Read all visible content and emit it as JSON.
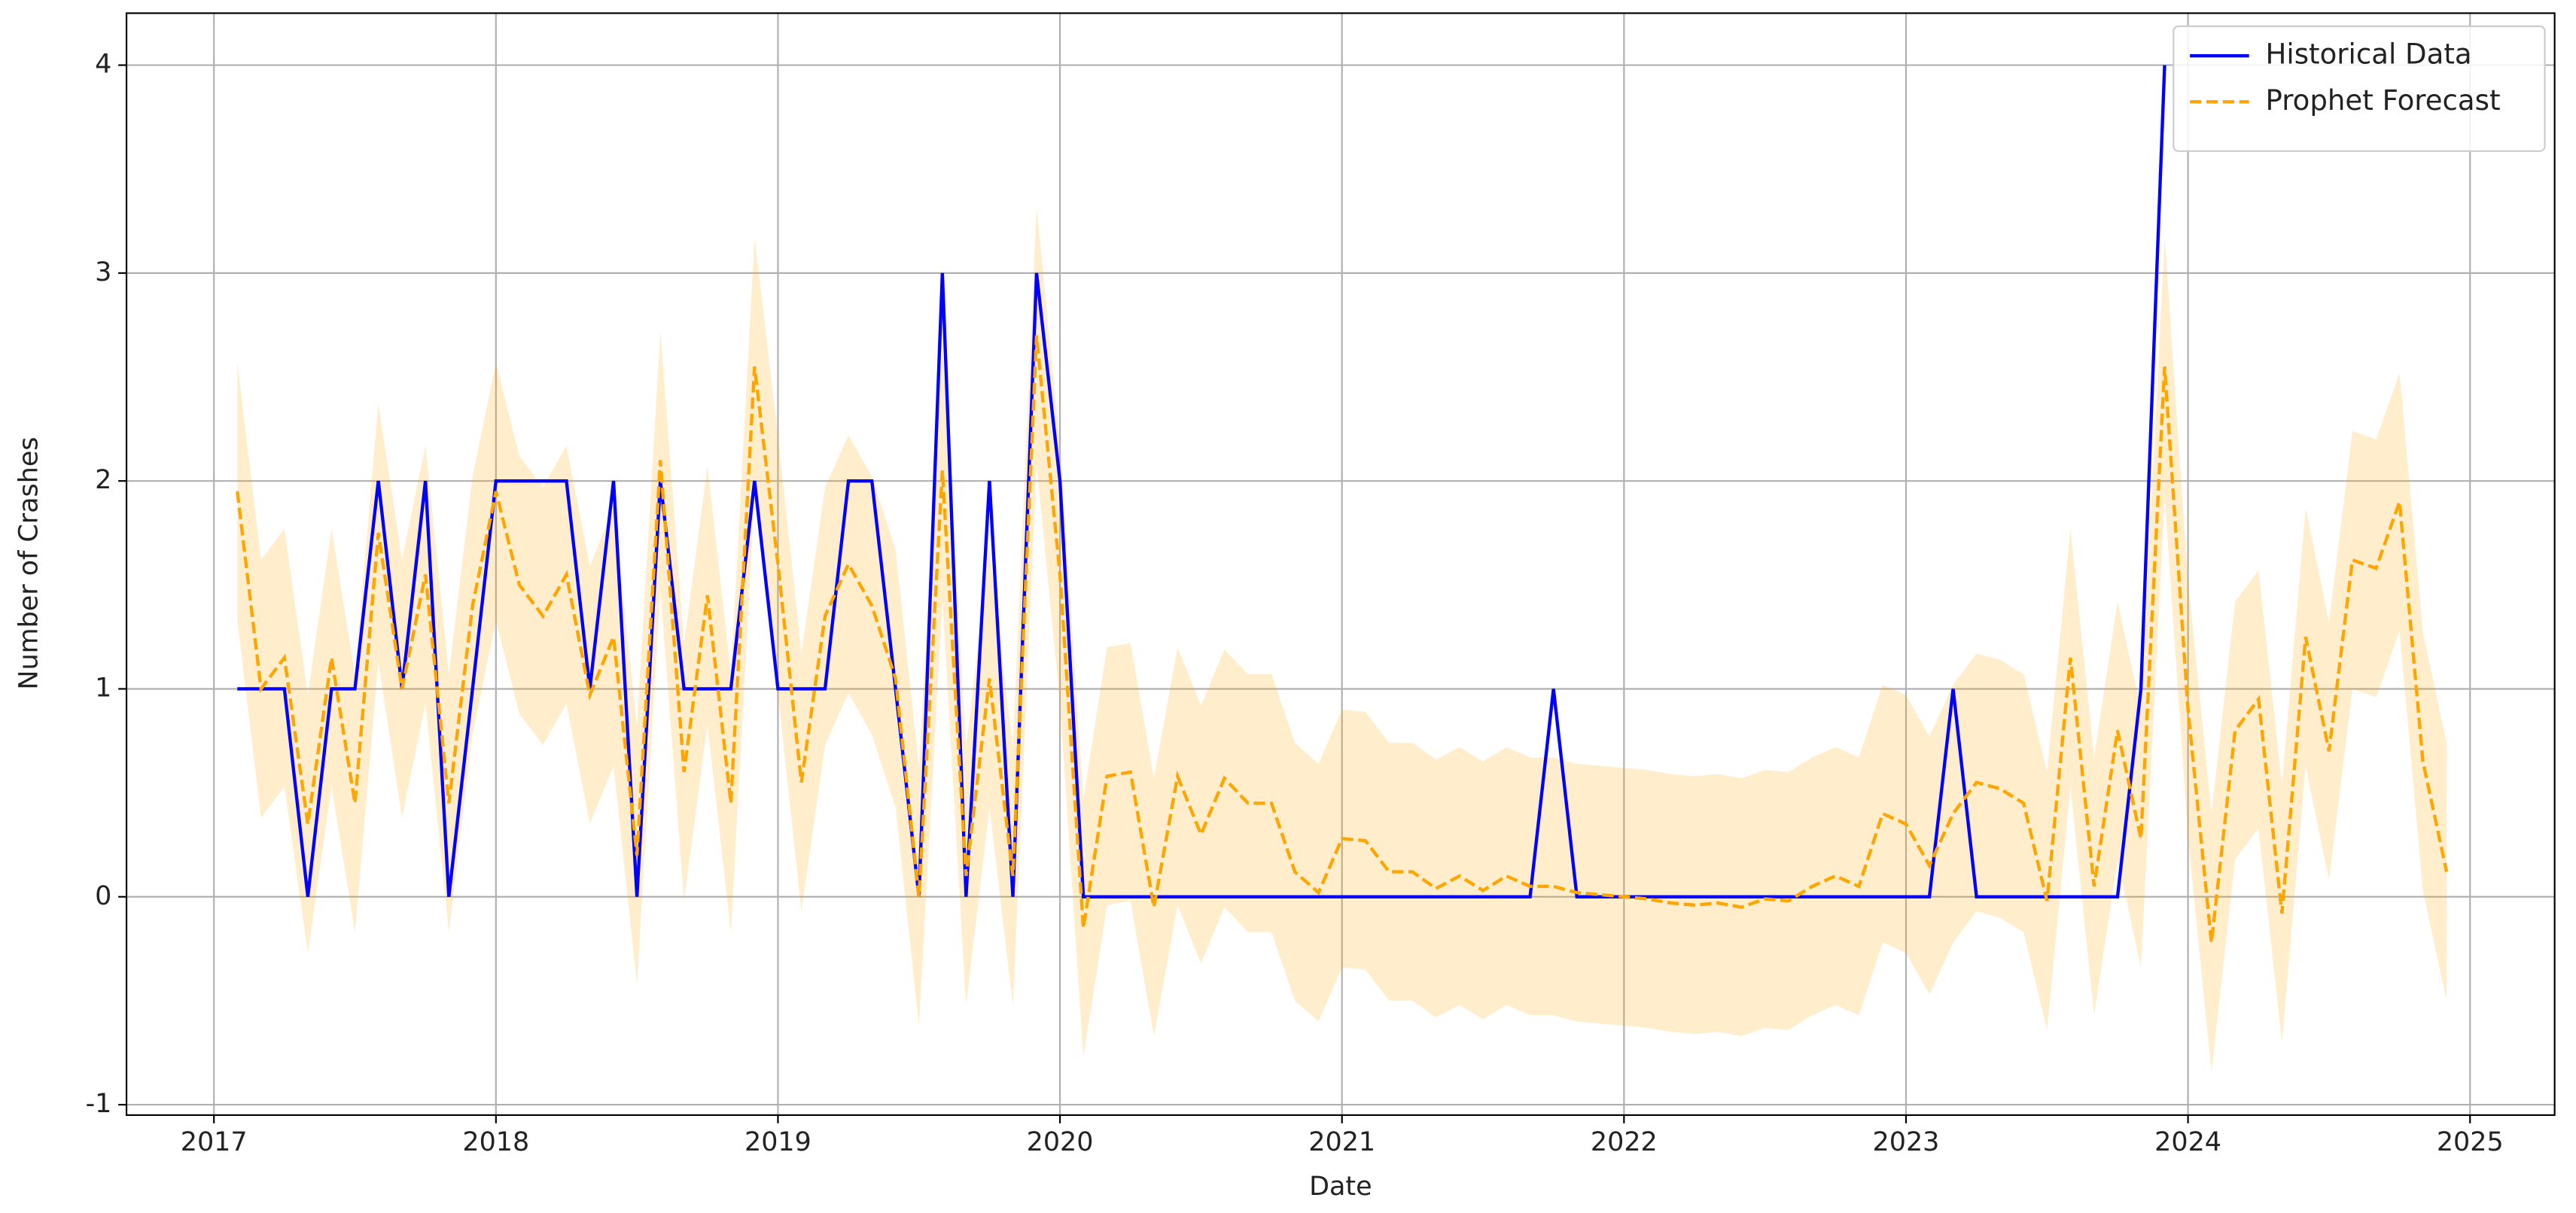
{
  "chart_data": {
    "type": "line",
    "xlabel": "Date",
    "ylabel": "Number of Crashes",
    "xlim": [
      2016.69,
      2025.3
    ],
    "xticks": [
      2017,
      2018,
      2019,
      2020,
      2021,
      2022,
      2023,
      2024,
      2025
    ],
    "ylim": [
      -1.05,
      4.25
    ],
    "yticks": [
      -1,
      0,
      1,
      2,
      3,
      4
    ],
    "grid": true,
    "legend": "upper right",
    "series": [
      {
        "name": "Historical Data",
        "color": "#0000ff",
        "linestyle": "solid",
        "x": [
          2017.083,
          2017.167,
          2017.25,
          2017.333,
          2017.417,
          2017.5,
          2017.583,
          2017.667,
          2017.75,
          2017.833,
          2017.917,
          2018,
          2018.083,
          2018.167,
          2018.25,
          2018.333,
          2018.417,
          2018.5,
          2018.583,
          2018.667,
          2018.75,
          2018.833,
          2018.917,
          2019,
          2019.083,
          2019.167,
          2019.25,
          2019.333,
          2019.417,
          2019.5,
          2019.583,
          2019.667,
          2019.75,
          2019.833,
          2019.917,
          2020,
          2020.083,
          2020.167,
          2020.25,
          2020.333,
          2020.417,
          2020.5,
          2020.583,
          2020.667,
          2020.75,
          2020.833,
          2020.917,
          2021,
          2021.083,
          2021.167,
          2021.25,
          2021.333,
          2021.417,
          2021.5,
          2021.583,
          2021.667,
          2021.75,
          2021.833,
          2021.917,
          2022,
          2022.083,
          2022.167,
          2022.25,
          2022.333,
          2022.417,
          2022.5,
          2022.583,
          2022.667,
          2022.75,
          2022.833,
          2022.917,
          2023,
          2023.083,
          2023.167,
          2023.25,
          2023.333,
          2023.417,
          2023.5,
          2023.583,
          2023.667,
          2023.75,
          2023.833,
          2023.917
        ],
        "values": [
          1,
          1,
          1,
          0,
          1,
          1,
          2,
          1,
          2,
          0,
          1,
          2,
          2,
          2,
          2,
          1,
          2,
          0,
          2,
          1,
          1,
          1,
          2,
          1,
          1,
          1,
          2,
          2,
          1,
          0,
          3,
          0,
          2,
          0,
          3,
          2,
          0,
          0,
          0,
          0,
          0,
          0,
          0,
          0,
          0,
          0,
          0,
          0,
          0,
          0,
          0,
          0,
          0,
          0,
          0,
          0,
          1,
          0,
          0,
          0,
          0,
          0,
          0,
          0,
          0,
          0,
          0,
          0,
          0,
          0,
          0,
          0,
          0,
          1,
          0,
          0,
          0,
          0,
          0,
          0,
          0,
          1,
          4
        ]
      },
      {
        "name": "Prophet Forecast",
        "color": "#ffa500",
        "linestyle": "dashed",
        "x": [
          2017.083,
          2017.167,
          2017.25,
          2017.333,
          2017.417,
          2017.5,
          2017.583,
          2017.667,
          2017.75,
          2017.833,
          2017.917,
          2018,
          2018.083,
          2018.167,
          2018.25,
          2018.333,
          2018.417,
          2018.5,
          2018.583,
          2018.667,
          2018.75,
          2018.833,
          2018.917,
          2019,
          2019.083,
          2019.167,
          2019.25,
          2019.333,
          2019.417,
          2019.5,
          2019.583,
          2019.667,
          2019.75,
          2019.833,
          2019.917,
          2020,
          2020.083,
          2020.167,
          2020.25,
          2020.333,
          2020.417,
          2020.5,
          2020.583,
          2020.667,
          2020.75,
          2020.833,
          2020.917,
          2021,
          2021.083,
          2021.167,
          2021.25,
          2021.333,
          2021.417,
          2021.5,
          2021.583,
          2021.667,
          2021.75,
          2021.833,
          2021.917,
          2022,
          2022.083,
          2022.167,
          2022.25,
          2022.333,
          2022.417,
          2022.5,
          2022.583,
          2022.667,
          2022.75,
          2022.833,
          2022.917,
          2023,
          2023.083,
          2023.167,
          2023.25,
          2023.333,
          2023.417,
          2023.5,
          2023.583,
          2023.667,
          2023.75,
          2023.833,
          2023.917,
          2024,
          2024.083,
          2024.167,
          2024.25,
          2024.333,
          2024.417,
          2024.5,
          2024.583,
          2024.667,
          2024.75,
          2024.833,
          2024.917
        ],
        "values": [
          1.95,
          1.0,
          1.15,
          0.35,
          1.15,
          0.45,
          1.75,
          1.0,
          1.55,
          0.45,
          1.4,
          1.95,
          1.5,
          1.35,
          1.55,
          0.97,
          1.25,
          0.2,
          2.1,
          0.6,
          1.45,
          0.45,
          2.55,
          1.6,
          0.55,
          1.35,
          1.6,
          1.4,
          1.05,
          0.0,
          2.05,
          0.1,
          1.05,
          0.1,
          2.7,
          1.55,
          -0.15,
          0.58,
          0.6,
          -0.05,
          0.58,
          0.3,
          0.57,
          0.45,
          0.45,
          0.12,
          0.02,
          0.28,
          0.27,
          0.12,
          0.12,
          0.04,
          0.1,
          0.03,
          0.1,
          0.05,
          0.05,
          0.02,
          0.01,
          0.0,
          -0.01,
          -0.03,
          -0.04,
          -0.03,
          -0.05,
          -0.01,
          -0.02,
          0.05,
          0.1,
          0.05,
          0.4,
          0.35,
          0.15,
          0.4,
          0.55,
          0.52,
          0.45,
          -0.02,
          1.15,
          0.05,
          0.8,
          0.28,
          2.55,
          0.9,
          -0.22,
          0.8,
          0.95,
          -0.08,
          1.25,
          0.7,
          1.62,
          1.58,
          1.9,
          0.65,
          0.12
        ],
        "upper": [
          2.57,
          1.62,
          1.77,
          0.97,
          1.77,
          1.07,
          2.37,
          1.62,
          2.17,
          1.07,
          2.02,
          2.57,
          2.12,
          1.97,
          2.17,
          1.59,
          1.87,
          0.82,
          2.72,
          1.22,
          2.07,
          1.07,
          3.17,
          2.22,
          1.17,
          1.97,
          2.22,
          2.02,
          1.67,
          0.62,
          2.67,
          0.72,
          1.67,
          0.72,
          3.32,
          2.17,
          0.47,
          1.2,
          1.22,
          0.57,
          1.2,
          0.92,
          1.19,
          1.07,
          1.07,
          0.74,
          0.64,
          0.9,
          0.89,
          0.74,
          0.74,
          0.66,
          0.72,
          0.65,
          0.72,
          0.67,
          0.67,
          0.64,
          0.63,
          0.62,
          0.61,
          0.59,
          0.58,
          0.59,
          0.57,
          0.61,
          0.6,
          0.67,
          0.72,
          0.67,
          1.02,
          0.97,
          0.77,
          1.02,
          1.17,
          1.14,
          1.07,
          0.6,
          1.77,
          0.67,
          1.42,
          0.9,
          3.17,
          1.52,
          0.4,
          1.42,
          1.57,
          0.54,
          1.87,
          1.32,
          2.24,
          2.2,
          2.52,
          1.27,
          0.74
        ],
        "lower": [
          1.33,
          0.38,
          0.53,
          -0.27,
          0.53,
          -0.17,
          1.13,
          0.38,
          0.93,
          -0.17,
          0.78,
          1.33,
          0.88,
          0.73,
          0.93,
          0.35,
          0.63,
          -0.42,
          1.48,
          -0.02,
          0.83,
          -0.17,
          1.93,
          0.98,
          -0.07,
          0.73,
          0.98,
          0.78,
          0.43,
          -0.62,
          1.43,
          -0.52,
          0.43,
          -0.52,
          2.08,
          0.93,
          -0.77,
          -0.04,
          -0.02,
          -0.67,
          -0.04,
          -0.32,
          -0.05,
          -0.17,
          -0.17,
          -0.5,
          -0.6,
          -0.34,
          -0.35,
          -0.5,
          -0.5,
          -0.58,
          -0.52,
          -0.59,
          -0.52,
          -0.57,
          -0.57,
          -0.6,
          -0.61,
          -0.62,
          -0.63,
          -0.65,
          -0.66,
          -0.65,
          -0.67,
          -0.63,
          -0.64,
          -0.57,
          -0.52,
          -0.57,
          -0.22,
          -0.27,
          -0.47,
          -0.22,
          -0.07,
          -0.1,
          -0.17,
          -0.64,
          0.53,
          -0.57,
          0.18,
          -0.34,
          1.93,
          0.28,
          -0.84,
          0.18,
          0.33,
          -0.7,
          0.63,
          0.08,
          1.0,
          0.96,
          1.28,
          0.03,
          -0.5
        ],
        "band_color": "#ffa500"
      }
    ]
  }
}
